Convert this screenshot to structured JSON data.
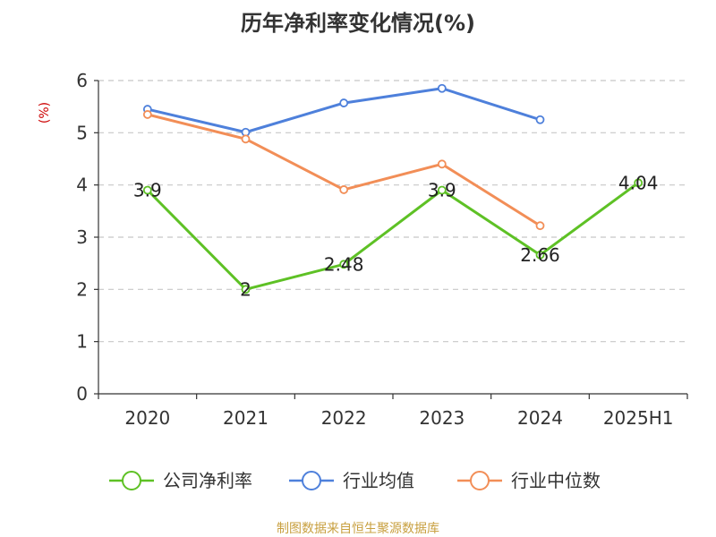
{
  "chart_data": {
    "type": "line",
    "title": "历年净利率变化情况(%)",
    "ylabel": "(%)",
    "xlabel": "",
    "categories": [
      "2020",
      "2021",
      "2022",
      "2023",
      "2024",
      "2025H1"
    ],
    "ylim": [
      0,
      6
    ],
    "yticks": [
      0,
      1,
      2,
      3,
      4,
      5,
      6
    ],
    "grid": true,
    "legend_position": "bottom",
    "series": [
      {
        "name": "公司净利率",
        "color": "#5ec125",
        "values": [
          3.9,
          2,
          2.48,
          3.9,
          2.66,
          4.04
        ],
        "labels": [
          "3.9",
          "2",
          "2.48",
          "3.9",
          "2.66",
          "4.04"
        ]
      },
      {
        "name": "行业均值",
        "color": "#4e80db",
        "values": [
          5.45,
          5.01,
          5.57,
          5.85,
          5.25,
          null
        ]
      },
      {
        "name": "行业中位数",
        "color": "#f28e57",
        "values": [
          5.35,
          4.88,
          3.91,
          4.4,
          3.22,
          null
        ]
      }
    ]
  },
  "source": {
    "text": "制图数据来自恒生聚源数据库",
    "color": "#c8a040"
  },
  "ylabel_color": "#cc0000"
}
